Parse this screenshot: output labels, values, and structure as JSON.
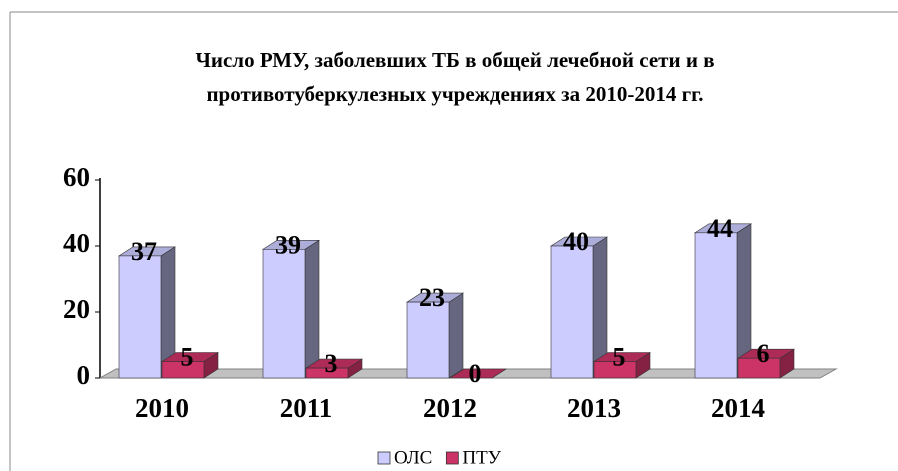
{
  "chart_data": {
    "type": "bar3d",
    "title": [
      "Число РМУ, заболевших ТБ в общей лечебной сети и в",
      "противотуберкулезных учреждениях за 2010-2014 гг."
    ],
    "categories": [
      "2010",
      "2011",
      "2012",
      "2013",
      "2014"
    ],
    "series": [
      {
        "name": "ОЛС",
        "color": "#ccccff",
        "values": [
          37,
          39,
          23,
          40,
          44
        ]
      },
      {
        "name": "ПТУ",
        "color": "#cc3366",
        "values": [
          5,
          3,
          0,
          5,
          6
        ]
      }
    ],
    "ylim": [
      0,
      60
    ],
    "yticks": [
      0,
      20,
      40,
      60
    ],
    "legend": "bottom"
  }
}
